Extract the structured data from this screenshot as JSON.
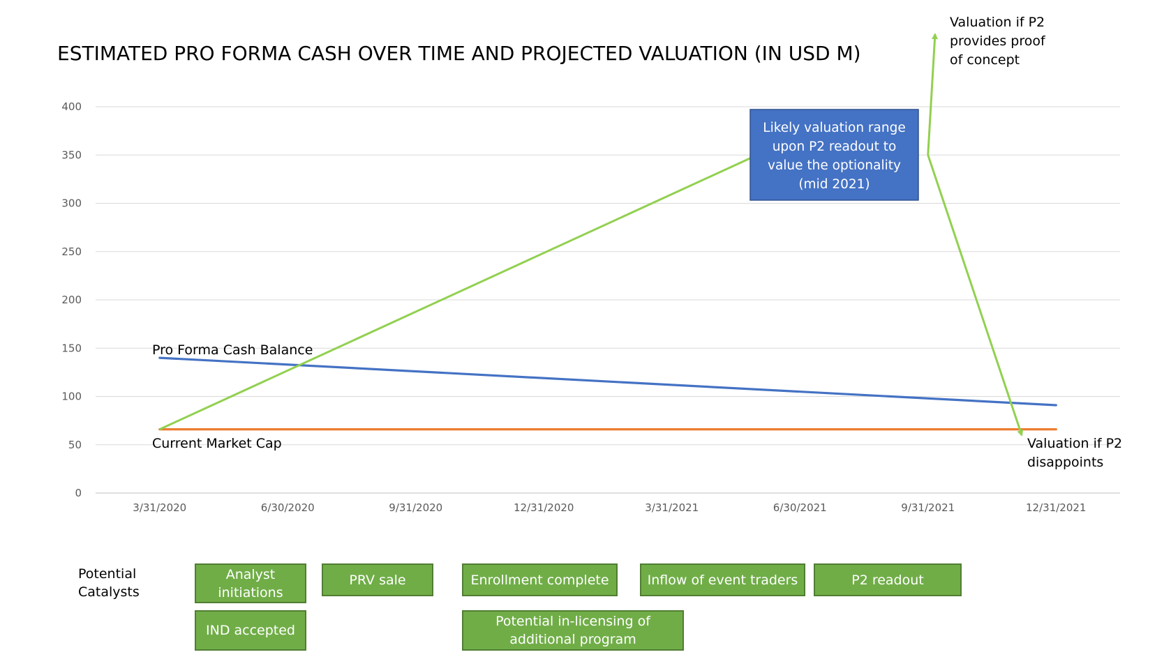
{
  "chart_data": {
    "type": "line",
    "title": "ESTIMATED PRO FORMA CASH OVER TIME AND PROJECTED VALUATION (IN USD M)",
    "x_ticks": [
      "3/31/2020",
      "6/30/2020",
      "9/31/2020",
      "12/31/2020",
      "3/31/2021",
      "6/30/2021",
      "9/31/2021",
      "12/31/2021"
    ],
    "y_ticks": [
      0,
      50,
      100,
      150,
      200,
      250,
      300,
      350,
      400
    ],
    "ylim": [
      0,
      400
    ],
    "grid": true,
    "series": [
      {
        "key": "cash",
        "color": "#4472c4",
        "x": [
          "3/31/2020",
          "12/31/2021"
        ],
        "values": [
          140,
          91
        ]
      },
      {
        "key": "market_cap",
        "color": "#ed7d31",
        "x": [
          "3/31/2020",
          "12/31/2021"
        ],
        "values": [
          66,
          66
        ]
      }
    ],
    "valuation_path": {
      "color": "#92d050",
      "x": [
        "3/31/2020",
        "5/31/2021",
        "9/31/2021",
        "11/30/2021"
      ],
      "values": [
        66,
        350,
        350,
        60
      ],
      "upside_value": 475
    },
    "annotations": {
      "cash_label": "Pro Forma Cash Balance",
      "market_cap_label": "Current Market Cap",
      "upside_label": [
        "Valuation if P2",
        "provides proof",
        "of concept"
      ],
      "downside_label": [
        "Valuation if P2",
        "disappoints"
      ],
      "range_box": {
        "lines": [
          "Likely valuation range",
          "upon P2 readout to",
          "value the optionality",
          "(mid 2021)"
        ],
        "fill": "#4472c4",
        "border": "#2f528f"
      }
    }
  },
  "catalysts": {
    "label": [
      "Potential",
      "Catalysts"
    ],
    "fill": "#70ad47",
    "items": [
      {
        "id": "analyst-initiations",
        "text": "Analyst\ninitiations"
      },
      {
        "id": "prv-sale",
        "text": "PRV sale"
      },
      {
        "id": "enrollment-complete",
        "text": "Enrollment complete"
      },
      {
        "id": "inflow-of-event-traders",
        "text": "Inflow of event traders"
      },
      {
        "id": "p2-readout",
        "text": "P2 readout"
      },
      {
        "id": "ind-accepted",
        "text": "IND accepted"
      },
      {
        "id": "in-licensing",
        "text": "Potential in-licensing of\nadditional program"
      }
    ]
  }
}
